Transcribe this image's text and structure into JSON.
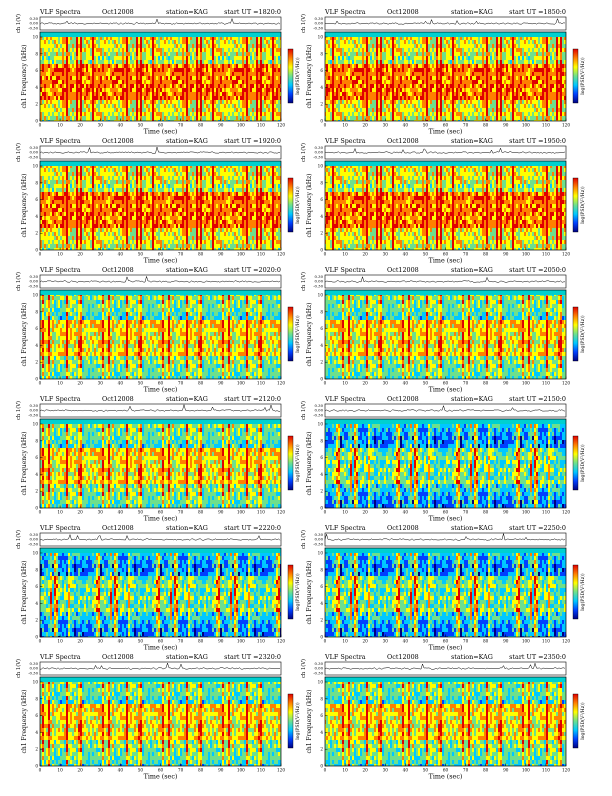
{
  "page": {
    "colormap": [
      "#000080",
      "#0040ff",
      "#00c8ff",
      "#6ee08c",
      "#ffff00",
      "#ff8000",
      "#e00000"
    ],
    "line_color": "#000000",
    "accent_band_color": "#00d0d0"
  },
  "chart_data": [
    {
      "type": "heatmap",
      "title": "VLF Spectra",
      "date": "Oct12008",
      "station": "station=KAG",
      "start_ut": "start UT =1820:0",
      "xlabel": "Time (sec)",
      "ylabel": "ch1 Frequency (kHz)",
      "ylabel_small": "ch 1(V)",
      "colorbar_label": "log(PSD(V²/Hz))",
      "x_ticks": [
        "0",
        "10",
        "20",
        "30",
        "40",
        "50",
        "60",
        "70",
        "80",
        "90",
        "100",
        "110",
        "120"
      ],
      "y_ticks": [
        "0",
        "2",
        "4",
        "6",
        "8",
        "10"
      ],
      "small_y_ticks": [
        "0.30",
        "0.00",
        "-0.30"
      ],
      "xlim": [
        0,
        120
      ],
      "ylim": [
        0,
        10
      ],
      "activity": "high"
    },
    {
      "type": "heatmap",
      "title": "VLF Spectra",
      "date": "Oct12008",
      "station": "station=KAG",
      "start_ut": "start UT =1850:0",
      "xlabel": "Time (sec)",
      "ylabel": "ch1 Frequency (kHz)",
      "ylabel_small": "ch 1(V)",
      "colorbar_label": "log(PSD(V²/Hz))",
      "x_ticks": [
        "0",
        "10",
        "20",
        "30",
        "40",
        "50",
        "60",
        "70",
        "80",
        "90",
        "100",
        "110",
        "120"
      ],
      "y_ticks": [
        "0",
        "2",
        "4",
        "6",
        "8",
        "10"
      ],
      "small_y_ticks": [
        "0.30",
        "0.00",
        "-0.30"
      ],
      "xlim": [
        0,
        120
      ],
      "ylim": [
        0,
        10
      ],
      "activity": "high"
    },
    {
      "type": "heatmap",
      "title": "VLF Spectra",
      "date": "Oct12008",
      "station": "station=KAG",
      "start_ut": "start UT =1920:0",
      "xlabel": "Time (sec)",
      "ylabel": "ch1 Frequency (kHz)",
      "ylabel_small": "ch 1(V)",
      "colorbar_label": "log(PSD(V²/Hz))",
      "x_ticks": [
        "0",
        "10",
        "20",
        "30",
        "40",
        "50",
        "60",
        "70",
        "80",
        "90",
        "100",
        "110",
        "120"
      ],
      "y_ticks": [
        "0",
        "2",
        "4",
        "6",
        "8",
        "10"
      ],
      "small_y_ticks": [
        "0.30",
        "0.00",
        "-0.30"
      ],
      "xlim": [
        0,
        120
      ],
      "ylim": [
        0,
        10
      ],
      "activity": "high"
    },
    {
      "type": "heatmap",
      "title": "VLF Spectra",
      "date": "Oct12008",
      "station": "station=KAG",
      "start_ut": "start UT =1950:0",
      "xlabel": "Time (sec)",
      "ylabel": "ch1 Frequency (kHz)",
      "ylabel_small": "ch 1(V)",
      "colorbar_label": "log(PSD(V²/Hz))",
      "x_ticks": [
        "0",
        "10",
        "20",
        "30",
        "40",
        "50",
        "60",
        "70",
        "80",
        "90",
        "100",
        "110",
        "120"
      ],
      "y_ticks": [
        "0",
        "2",
        "4",
        "6",
        "8",
        "10"
      ],
      "small_y_ticks": [
        "0.30",
        "0.00",
        "-0.30"
      ],
      "xlim": [
        0,
        120
      ],
      "ylim": [
        0,
        10
      ],
      "activity": "high"
    },
    {
      "type": "heatmap",
      "title": "VLF Spectra",
      "date": "Oct12008",
      "station": "station=KAG",
      "start_ut": "start UT =2020:0",
      "xlabel": "Time (sec)",
      "ylabel": "ch1 Frequency (kHz)",
      "ylabel_small": "ch 1(V)",
      "colorbar_label": "log(PSD(V²/Hz))",
      "x_ticks": [
        "0",
        "10",
        "20",
        "30",
        "40",
        "50",
        "60",
        "70",
        "80",
        "90",
        "100",
        "110",
        "120"
      ],
      "y_ticks": [
        "0",
        "2",
        "4",
        "6",
        "8",
        "10"
      ],
      "small_y_ticks": [
        "0.30",
        "0.00",
        "-0.30"
      ],
      "xlim": [
        0,
        120
      ],
      "ylim": [
        0,
        10
      ],
      "activity": "medium"
    },
    {
      "type": "heatmap",
      "title": "VLF Spectra",
      "date": "Oct12008",
      "station": "station=KAG",
      "start_ut": "start UT =2050:0",
      "xlabel": "Time (sec)",
      "ylabel": "ch1 Frequency (kHz)",
      "ylabel_small": "ch 1(V)",
      "colorbar_label": "log(PSD(V²/Hz))",
      "x_ticks": [
        "0",
        "10",
        "20",
        "30",
        "40",
        "50",
        "60",
        "70",
        "80",
        "90",
        "100",
        "110",
        "120"
      ],
      "y_ticks": [
        "0",
        "2",
        "4",
        "6",
        "8",
        "10"
      ],
      "small_y_ticks": [
        "0.30",
        "0.00",
        "-0.30"
      ],
      "xlim": [
        0,
        120
      ],
      "ylim": [
        0,
        10
      ],
      "activity": "medium"
    },
    {
      "type": "heatmap",
      "title": "VLF Spectra",
      "date": "Oct12008",
      "station": "station=KAG",
      "start_ut": "start UT =2120:0",
      "xlabel": "Time (sec)",
      "ylabel": "ch1 Frequency (kHz)",
      "ylabel_small": "ch 1(V)",
      "colorbar_label": "log(PSD(V²/Hz))",
      "x_ticks": [
        "0",
        "10",
        "20",
        "30",
        "40",
        "50",
        "60",
        "70",
        "80",
        "90",
        "100",
        "110",
        "120"
      ],
      "y_ticks": [
        "0",
        "2",
        "4",
        "6",
        "8",
        "10"
      ],
      "small_y_ticks": [
        "0.30",
        "0.00",
        "-0.30"
      ],
      "xlim": [
        0,
        120
      ],
      "ylim": [
        0,
        10
      ],
      "activity": "medium"
    },
    {
      "type": "heatmap",
      "title": "VLF Spectra",
      "date": "Oct12008",
      "station": "station=KAG",
      "start_ut": "start UT =2150:0",
      "xlabel": "Time (sec)",
      "ylabel": "ch1 Frequency (kHz)",
      "ylabel_small": "ch 1(V)",
      "colorbar_label": "log(PSD(V²/Hz))",
      "x_ticks": [
        "0",
        "10",
        "20",
        "30",
        "40",
        "50",
        "60",
        "70",
        "80",
        "90",
        "100",
        "110",
        "120"
      ],
      "y_ticks": [
        "0",
        "2",
        "4",
        "6",
        "8",
        "10"
      ],
      "small_y_ticks": [
        "0.30",
        "0.00",
        "-0.30"
      ],
      "xlim": [
        0,
        120
      ],
      "ylim": [
        0,
        10
      ],
      "activity": "low"
    },
    {
      "type": "heatmap",
      "title": "VLF Spectra",
      "date": "Oct12008",
      "station": "station=KAG",
      "start_ut": "start UT =2220:0",
      "xlabel": "Time (sec)",
      "ylabel": "ch1 Frequency (kHz)",
      "ylabel_small": "ch 1(V)",
      "colorbar_label": "log(PSD(V²/Hz))",
      "x_ticks": [
        "0",
        "10",
        "20",
        "30",
        "40",
        "50",
        "60",
        "70",
        "80",
        "90",
        "100",
        "110",
        "120"
      ],
      "y_ticks": [
        "0",
        "2",
        "4",
        "6",
        "8",
        "10"
      ],
      "small_y_ticks": [
        "0.30",
        "0.00",
        "-0.30"
      ],
      "xlim": [
        0,
        120
      ],
      "ylim": [
        0,
        10
      ],
      "activity": "low"
    },
    {
      "type": "heatmap",
      "title": "VLF Spectra",
      "date": "Oct12008",
      "station": "station=KAG",
      "start_ut": "start UT =2250:0",
      "xlabel": "Time (sec)",
      "ylabel": "ch1 Frequency (kHz)",
      "ylabel_small": "ch 1(V)",
      "colorbar_label": "log(PSD(V²/Hz))",
      "x_ticks": [
        "0",
        "10",
        "20",
        "30",
        "40",
        "50",
        "60",
        "70",
        "80",
        "90",
        "100",
        "110",
        "120"
      ],
      "y_ticks": [
        "0",
        "2",
        "4",
        "6",
        "8",
        "10"
      ],
      "small_y_ticks": [
        "0.30",
        "0.00",
        "-0.30"
      ],
      "xlim": [
        0,
        120
      ],
      "ylim": [
        0,
        10
      ],
      "activity": "low"
    },
    {
      "type": "heatmap",
      "title": "VLF Spectra",
      "date": "Oct12008",
      "station": "station=KAG",
      "start_ut": "start UT =2320:0",
      "xlabel": "Time (sec)",
      "ylabel": "ch1 Frequency (kHz)",
      "ylabel_small": "ch 1(V)",
      "colorbar_label": "log(PSD(V²/Hz))",
      "x_ticks": [
        "0",
        "10",
        "20",
        "30",
        "40",
        "50",
        "60",
        "70",
        "80",
        "90",
        "100",
        "110",
        "120"
      ],
      "y_ticks": [
        "0",
        "2",
        "4",
        "6",
        "8",
        "10"
      ],
      "small_y_ticks": [
        "0.30",
        "0.00",
        "-0.30"
      ],
      "xlim": [
        0,
        120
      ],
      "ylim": [
        0,
        10
      ],
      "activity": "medium"
    },
    {
      "type": "heatmap",
      "title": "VLF Spectra",
      "date": "Oct12008",
      "station": "station=KAG",
      "start_ut": "start UT =2350:0",
      "xlabel": "Time (sec)",
      "ylabel": "ch1 Frequency (kHz)",
      "ylabel_small": "ch 1(V)",
      "colorbar_label": "log(PSD(V²/Hz))",
      "x_ticks": [
        "0",
        "10",
        "20",
        "30",
        "40",
        "50",
        "60",
        "70",
        "80",
        "90",
        "100",
        "110",
        "120"
      ],
      "y_ticks": [
        "0",
        "2",
        "4",
        "6",
        "8",
        "10"
      ],
      "small_y_ticks": [
        "0.30",
        "0.00",
        "-0.30"
      ],
      "xlim": [
        0,
        120
      ],
      "ylim": [
        0,
        10
      ],
      "activity": "medium"
    }
  ]
}
